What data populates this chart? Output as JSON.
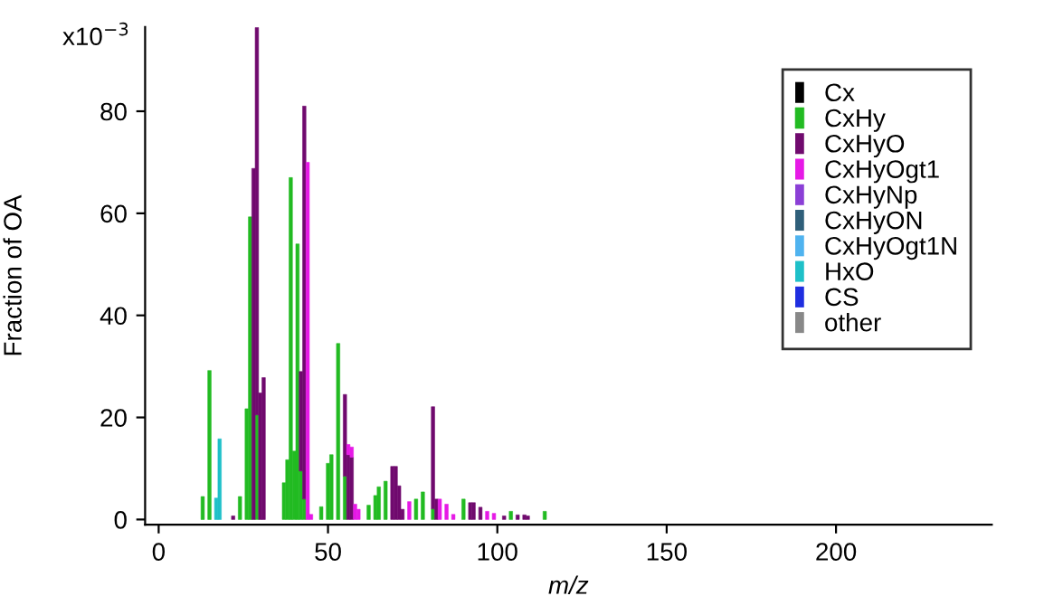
{
  "chart_data": {
    "type": "bar",
    "stacked": true,
    "xlabel": "m/z",
    "ylabel": "Fraction of OA",
    "x": [
      13,
      15,
      17,
      18,
      22,
      24,
      26,
      27,
      28,
      29,
      30,
      31,
      37,
      38,
      39,
      40,
      41,
      42,
      43,
      44,
      45,
      48,
      50,
      51,
      53,
      55,
      56,
      57,
      58,
      59,
      62,
      64,
      65,
      67,
      69,
      70,
      71,
      72,
      74,
      76,
      78,
      81,
      82,
      83,
      85,
      87,
      90,
      92,
      93,
      95,
      97,
      99,
      102,
      104,
      106,
      108,
      109,
      114,
      116,
      118,
      119
    ],
    "series": [
      {
        "name": "Cx",
        "color": "#000000",
        "values": [
          null,
          null,
          null,
          null,
          null,
          null,
          null,
          null,
          null,
          null,
          null,
          null,
          null,
          null,
          null,
          null,
          null,
          null,
          null,
          null,
          null,
          null,
          null,
          null,
          null,
          null,
          null,
          null,
          null,
          null,
          null,
          null,
          null,
          null,
          null,
          null,
          null,
          null,
          null,
          null,
          null,
          null,
          null,
          null,
          null,
          null,
          null,
          null,
          null,
          null,
          null,
          null,
          null,
          null,
          null,
          null,
          null,
          null,
          null,
          null,
          null
        ]
      },
      {
        "name": "CxHy",
        "color": "#22bb22",
        "values": [
          4.5,
          29.2,
          0,
          0,
          0,
          4.5,
          21.7,
          59.3,
          0,
          20.5,
          0,
          0,
          7.2,
          11.7,
          67,
          13.4,
          54,
          9.5,
          4,
          0,
          0,
          2.5,
          11,
          12.7,
          34.5,
          8.5,
          0,
          0,
          0,
          0,
          2.8,
          4.7,
          6.4,
          7.5,
          0,
          0,
          0,
          0,
          0,
          4,
          5.4,
          2.1,
          0,
          0,
          0,
          0,
          4,
          0,
          0,
          0,
          0,
          0,
          0,
          1.6,
          0,
          0,
          0,
          1.6,
          0,
          0,
          0
        ]
      },
      {
        "name": "CxHyO",
        "color": "#700a6e",
        "values": [
          0,
          0,
          0,
          0,
          0.7,
          0,
          0,
          0,
          68.8,
          75.9,
          24.8,
          27.8,
          0,
          0,
          0,
          0,
          0,
          19.5,
          77,
          0,
          0,
          0,
          0,
          0,
          0,
          16,
          12.7,
          12.2,
          0,
          0,
          0,
          0,
          0,
          0,
          10.4,
          10.4,
          6.6,
          2,
          0,
          0,
          0,
          20,
          4,
          0,
          0,
          0,
          0,
          3.3,
          3.3,
          2.4,
          0,
          0,
          0.7,
          0,
          0.9,
          0.9,
          0.7,
          0,
          0,
          0,
          0
        ]
      },
      {
        "name": "CxHyOgt1",
        "color": "#e619e6",
        "values": [
          0,
          0,
          0,
          0,
          0,
          0,
          0,
          0,
          0,
          0,
          0,
          0,
          0,
          0,
          0,
          0,
          0,
          0,
          0,
          70,
          1,
          0,
          0,
          0,
          0,
          0,
          2,
          2,
          3,
          2,
          0,
          0,
          0,
          0,
          0,
          0,
          0,
          0,
          3.5,
          0,
          0,
          0,
          0,
          4,
          3,
          1,
          0,
          0,
          0,
          0,
          1.6,
          1.2,
          0,
          0,
          0,
          0,
          0,
          0,
          0,
          0,
          0
        ]
      },
      {
        "name": "CxHyNp",
        "color": "#8b3fd6",
        "values": [
          null,
          null,
          null,
          null,
          null,
          null,
          null,
          null,
          null,
          null,
          null,
          null,
          null,
          null,
          null,
          null,
          null,
          null,
          null,
          null,
          null,
          null,
          null,
          null,
          null,
          null,
          null,
          null,
          null,
          null,
          null,
          null,
          null,
          null,
          null,
          null,
          null,
          null,
          null,
          null,
          null,
          null,
          null,
          null,
          null,
          null,
          null,
          null,
          null,
          null,
          null,
          null,
          null,
          null,
          null,
          null,
          null,
          null,
          null,
          null,
          null
        ]
      },
      {
        "name": "CxHyON",
        "color": "#2f5f7a",
        "values": [
          null,
          null,
          null,
          null,
          null,
          null,
          null,
          null,
          null,
          null,
          null,
          null,
          null,
          null,
          null,
          null,
          null,
          null,
          null,
          null,
          null,
          null,
          null,
          null,
          null,
          null,
          null,
          null,
          null,
          null,
          null,
          null,
          null,
          null,
          null,
          null,
          null,
          null,
          null,
          null,
          null,
          null,
          null,
          null,
          null,
          null,
          null,
          null,
          null,
          null,
          null,
          null,
          null,
          null,
          null,
          null,
          null,
          null,
          null,
          null,
          null
        ]
      },
      {
        "name": "CxHyOgt1N",
        "color": "#4fb3ef",
        "values": [
          null,
          null,
          null,
          null,
          null,
          null,
          null,
          null,
          null,
          null,
          null,
          null,
          null,
          null,
          null,
          null,
          null,
          null,
          null,
          null,
          null,
          null,
          null,
          null,
          null,
          null,
          null,
          null,
          null,
          null,
          null,
          null,
          null,
          null,
          null,
          null,
          null,
          null,
          null,
          null,
          null,
          null,
          null,
          null,
          null,
          null,
          null,
          null,
          null,
          null,
          null,
          null,
          null,
          null,
          null,
          null,
          null,
          null,
          null,
          null,
          null
        ]
      },
      {
        "name": "HxO",
        "color": "#1ec0c8",
        "values": [
          0,
          0,
          4.2,
          15.8,
          0,
          0,
          0,
          0,
          0,
          0,
          0,
          0,
          0,
          0,
          0,
          0,
          0,
          0,
          0,
          0,
          0,
          0,
          0,
          0,
          0,
          0,
          0,
          0,
          0,
          0,
          0,
          0,
          0,
          0,
          0,
          0,
          0,
          0,
          0,
          0,
          0,
          0,
          0,
          0,
          0,
          0,
          0,
          0,
          0,
          0,
          0,
          0,
          0,
          0,
          0,
          0,
          0,
          0,
          0,
          0,
          0
        ]
      },
      {
        "name": "CS",
        "color": "#1f2ee0",
        "values": [
          null,
          null,
          null,
          null,
          null,
          null,
          null,
          null,
          null,
          null,
          null,
          null,
          null,
          null,
          null,
          null,
          null,
          null,
          null,
          null,
          null,
          null,
          null,
          null,
          null,
          null,
          null,
          null,
          null,
          null,
          null,
          null,
          null,
          null,
          null,
          null,
          null,
          null,
          null,
          null,
          null,
          null,
          null,
          null,
          null,
          null,
          null,
          null,
          null,
          null,
          null,
          null,
          null,
          null,
          null,
          null,
          null,
          null,
          null,
          null,
          null
        ]
      },
      {
        "name": "other",
        "color": "#888888",
        "values": [
          null,
          null,
          null,
          null,
          null,
          null,
          null,
          null,
          null,
          null,
          null,
          null,
          null,
          null,
          null,
          null,
          null,
          null,
          null,
          null,
          null,
          null,
          null,
          null,
          null,
          null,
          null,
          null,
          null,
          null,
          null,
          null,
          null,
          null,
          null,
          null,
          null,
          null,
          null,
          null,
          null,
          null,
          null,
          null,
          null,
          null,
          null,
          null,
          null,
          null,
          null,
          null,
          null,
          null,
          null,
          null,
          null,
          null,
          null,
          null,
          null
        ]
      }
    ],
    "xlim": [
      -4,
      246
    ],
    "xticks": [
      0,
      50,
      100,
      150,
      200
    ],
    "ylim": [
      -1,
      96.5
    ],
    "yticks": [
      0,
      20,
      40,
      60,
      80
    ],
    "annotations": [
      "x10$^{−3}$"
    ],
    "legend": "top right",
    "grid": false
  }
}
